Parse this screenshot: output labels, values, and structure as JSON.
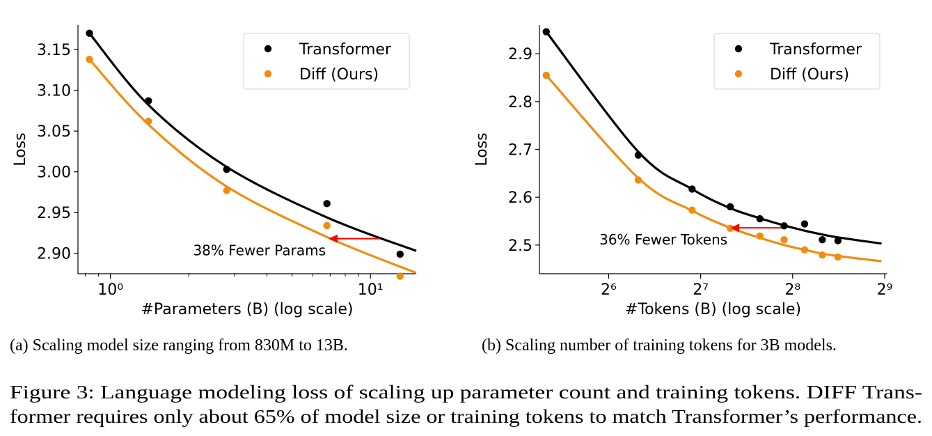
{
  "figure_caption": {
    "line1": "Figure 3: Language modeling loss of scaling up parameter count and training tokens. DIFF Trans-",
    "line2": "former requires only about 65% of model size or training tokens to match Transformer’s performance."
  },
  "chart_data": [
    {
      "type": "scatter",
      "subcaption": "(a) Scaling model size ranging from 830M to 13B.",
      "xlabel": "#Parameters (B) (log scale)",
      "ylabel": "Loss",
      "xscale": "log10",
      "xlim": [
        0.75,
        15
      ],
      "ylim": [
        2.875,
        3.18
      ],
      "xticks": [
        {
          "value": 1,
          "label": "10⁰"
        },
        {
          "value": 10,
          "label": "10¹"
        }
      ],
      "yticks": [
        {
          "value": 2.9,
          "label": "2.90"
        },
        {
          "value": 2.95,
          "label": "2.95"
        },
        {
          "value": 3.0,
          "label": "3.00"
        },
        {
          "value": 3.05,
          "label": "3.05"
        },
        {
          "value": 3.1,
          "label": "3.10"
        },
        {
          "value": 3.15,
          "label": "3.15"
        }
      ],
      "legend_position": "top-right",
      "grid": false,
      "series": [
        {
          "name": "Transformer",
          "color": "#000000",
          "x": [
            0.83,
            1.4,
            2.8,
            6.8,
            13
          ],
          "y": [
            3.17,
            3.087,
            3.003,
            2.961,
            2.899
          ],
          "fit_x": [
            0.83,
            1.4,
            2.8,
            6.8,
            15
          ],
          "fit_y": [
            3.17,
            3.082,
            3.006,
            2.944,
            2.903
          ]
        },
        {
          "name": "Diff (Ours)",
          "color": "#f28c0f",
          "x": [
            0.83,
            1.4,
            2.8,
            6.8,
            13
          ],
          "y": [
            3.138,
            3.062,
            2.977,
            2.934,
            2.872
          ],
          "fit_x": [
            0.83,
            1.4,
            2.8,
            6.8,
            15
          ],
          "fit_y": [
            3.138,
            3.058,
            2.982,
            2.92,
            2.876
          ]
        }
      ],
      "annotation": {
        "text": "38% Fewer Params",
        "arrow_from": [
          10.8,
          2.918
        ],
        "arrow_to": [
          6.9,
          2.918
        ],
        "color": "#ff0000"
      }
    },
    {
      "type": "scatter",
      "subcaption": "(b) Scaling number of training tokens for 3B models.",
      "xlabel": "#Tokens (B) (log scale)",
      "ylabel": "Loss",
      "xscale": "log2",
      "xlim": [
        38,
        520
      ],
      "ylim": [
        2.44,
        2.96
      ],
      "xticks": [
        {
          "value": 64,
          "label": "2⁶"
        },
        {
          "value": 128,
          "label": "2⁷"
        },
        {
          "value": 256,
          "label": "2⁸"
        },
        {
          "value": 512,
          "label": "2⁹"
        }
      ],
      "yticks": [
        {
          "value": 2.5,
          "label": "2.5"
        },
        {
          "value": 2.6,
          "label": "2.6"
        },
        {
          "value": 2.7,
          "label": "2.7"
        },
        {
          "value": 2.8,
          "label": "2.8"
        },
        {
          "value": 2.9,
          "label": "2.9"
        }
      ],
      "legend_position": "top-right",
      "grid": false,
      "series": [
        {
          "name": "Transformer",
          "color": "#000000",
          "x": [
            40,
            80,
            120,
            160,
            200,
            240,
            280,
            320,
            360
          ],
          "y": [
            2.946,
            2.688,
            2.617,
            2.58,
            2.555,
            2.54,
            2.544,
            2.511,
            2.509
          ],
          "fit_x": [
            40,
            80,
            120,
            160,
            200,
            240,
            280,
            320,
            360,
            500
          ],
          "fit_y": [
            2.946,
            2.695,
            2.617,
            2.577,
            2.556,
            2.541,
            2.53,
            2.522,
            2.516,
            2.503
          ]
        },
        {
          "name": "Diff (Ours)",
          "color": "#f28c0f",
          "x": [
            40,
            80,
            120,
            160,
            200,
            240,
            280,
            320,
            360
          ],
          "y": [
            2.855,
            2.636,
            2.573,
            2.535,
            2.519,
            2.511,
            2.49,
            2.479,
            2.475
          ],
          "fit_x": [
            40,
            80,
            120,
            160,
            200,
            240,
            280,
            320,
            360,
            500
          ],
          "fit_y": [
            2.855,
            2.64,
            2.572,
            2.536,
            2.515,
            2.5,
            2.49,
            2.482,
            2.477,
            2.466
          ]
        }
      ],
      "annotation": {
        "text": "36% Fewer Tokens",
        "arrow_from": [
          235,
          2.536
        ],
        "arrow_to": [
          160,
          2.536
        ],
        "color": "#ff0000"
      }
    }
  ]
}
